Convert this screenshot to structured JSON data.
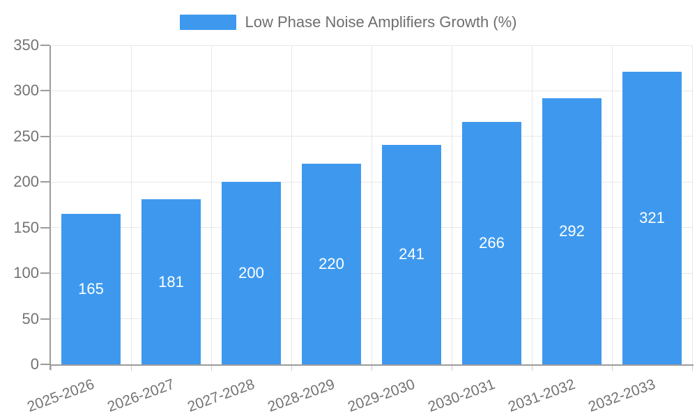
{
  "chart_data": {
    "type": "bar",
    "title": "Low Phase Noise Amplifiers Growth (%)",
    "categories": [
      "2025-2026",
      "2026-2027",
      "2027-2028",
      "2028-2029",
      "2029-2030",
      "2030-2031",
      "2031-2032",
      "2032-2033"
    ],
    "values": [
      165,
      181,
      200,
      220,
      241,
      266,
      292,
      321
    ],
    "xlabel": "",
    "ylabel": "",
    "ylim": [
      0,
      350
    ],
    "yticks": [
      0,
      50,
      100,
      150,
      200,
      250,
      300,
      350
    ],
    "grid": true,
    "legend_position": "top",
    "value_labels": "centered-inside-bars"
  },
  "legend": {
    "label": "Low Phase Noise Amplifiers Growth (%)"
  },
  "colors": {
    "bar": "#3E99EE",
    "value_label": "#FFFFFF",
    "axis_line": "#9B9B9B",
    "grid_line": "#E7E7E7",
    "tick": "#C9C9C9",
    "axis_label": "#737373",
    "legend_label": "#6E6E6E",
    "background": "#FFFFFF"
  }
}
